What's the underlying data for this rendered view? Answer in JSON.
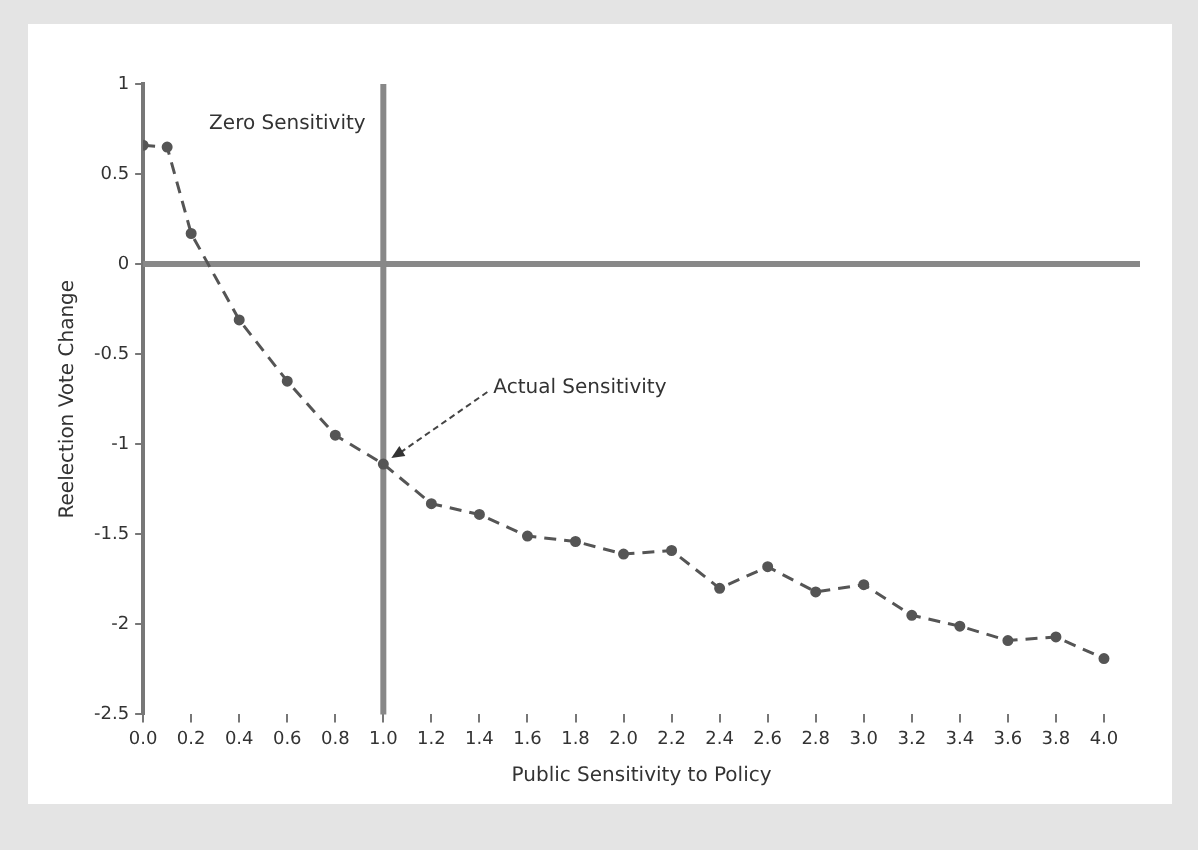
{
  "chart_data": {
    "type": "line",
    "xlabel": "Public Sensitivity to Policy",
    "ylabel": "Reelection Vote Change",
    "x": [
      0,
      0.1,
      0.2,
      0.4,
      0.6,
      0.8,
      1.0,
      1.2,
      1.4,
      1.6,
      1.8,
      2.0,
      2.2,
      2.4,
      2.6,
      2.8,
      3.0,
      3.2,
      3.4,
      3.6,
      3.8,
      4.0
    ],
    "series": [
      {
        "color": "#555555",
        "values": [
          0.66,
          0.65,
          0.17,
          -0.31,
          -0.65,
          -0.95,
          -1.11,
          -1.33,
          -1.39,
          -1.51,
          -1.54,
          -1.61,
          -1.59,
          -1.8,
          -1.68,
          -1.82,
          -1.78,
          -1.95,
          -2.01,
          -2.09,
          -2.07,
          -2.19
        ]
      }
    ],
    "xlim": [
      0,
      4.15
    ],
    "ylim": [
      -2.5,
      1
    ],
    "xticks": [
      {
        "value": 0,
        "label": "0.0"
      },
      {
        "value": 0.2,
        "label": "0.2"
      },
      {
        "value": 0.4,
        "label": "0.4"
      },
      {
        "value": 0.6,
        "label": "0.6"
      },
      {
        "value": 0.8,
        "label": "0.8"
      },
      {
        "value": 1,
        "label": "1.0"
      },
      {
        "value": 1.2,
        "label": "1.2"
      },
      {
        "value": 1.4,
        "label": "1.4"
      },
      {
        "value": 1.6,
        "label": "1.6"
      },
      {
        "value": 1.8,
        "label": "1.8"
      },
      {
        "value": 2,
        "label": "2.0"
      },
      {
        "value": 2.2,
        "label": "2.2"
      },
      {
        "value": 2.4,
        "label": "2.4"
      },
      {
        "value": 2.6,
        "label": "2.6"
      },
      {
        "value": 2.8,
        "label": "2.8"
      },
      {
        "value": 3,
        "label": "3.0"
      },
      {
        "value": 3.2,
        "label": "3.2"
      },
      {
        "value": 3.4,
        "label": "3.4"
      },
      {
        "value": 3.6,
        "label": "3.6"
      },
      {
        "value": 3.8,
        "label": "3.8"
      },
      {
        "value": 4,
        "label": "4.0"
      }
    ],
    "yticks": [
      1,
      0.5,
      0,
      -0.5,
      -1,
      -1.5,
      -2,
      -2.5
    ],
    "ref_lines": [
      {
        "axis": "y",
        "value": 0,
        "color": "#888888"
      },
      {
        "axis": "x",
        "value": 1.0,
        "color": "#888888"
      }
    ],
    "annotations": [
      "Zero Sensitivity",
      {
        "text": "Actual Sensitivity",
        "x": 1.0,
        "y": -1.11
      }
    ],
    "grid": false,
    "legend": false,
    "marker": "circle",
    "line_style": "dashed"
  }
}
